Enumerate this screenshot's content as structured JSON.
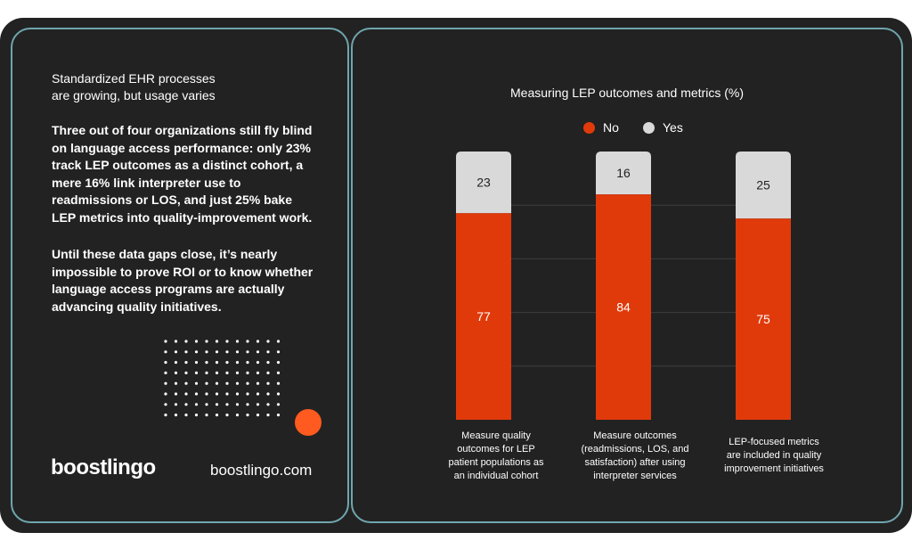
{
  "intro": "Standardized EHR processes\nare growing, but usage varies",
  "paragraph1": "Three out of four organizations still fly blind on language access performance: only 23% track LEP outcomes as a distinct cohort, a mere 16% link interpreter use to readmissions or LOS, and just 25% bake LEP metrics into quality-improvement work.",
  "paragraph2": "Until these data gaps close, it’s nearly impossible to prove ROI or to know whether language access programs are actually advancing quality initiatives.",
  "brand": {
    "logo": "boostlingo",
    "website": "boostlingo.com"
  },
  "colors": {
    "no": "#e03a0b",
    "yes": "#d9d9d9",
    "accent_dot": "#ff5a1f",
    "panel_border": "#6fa6ad"
  },
  "chart_data": {
    "type": "bar",
    "stacked": true,
    "title": "Measuring LEP outcomes and metrics (%)",
    "categories": [
      "Measure quality\noutcomes for LEP\npatient populations as\nan individual cohort",
      "Measure outcomes\n(readmissions, LOS, and\nsatisfaction) after using\ninterpreter services",
      "LEP-focused metrics\nare included in quality\nimprovement initiatives"
    ],
    "series": [
      {
        "name": "No",
        "values": [
          77,
          84,
          75
        ]
      },
      {
        "name": "Yes",
        "values": [
          23,
          16,
          25
        ]
      }
    ],
    "ylim": [
      0,
      100
    ],
    "legend_position": "top-center",
    "grid": true
  }
}
